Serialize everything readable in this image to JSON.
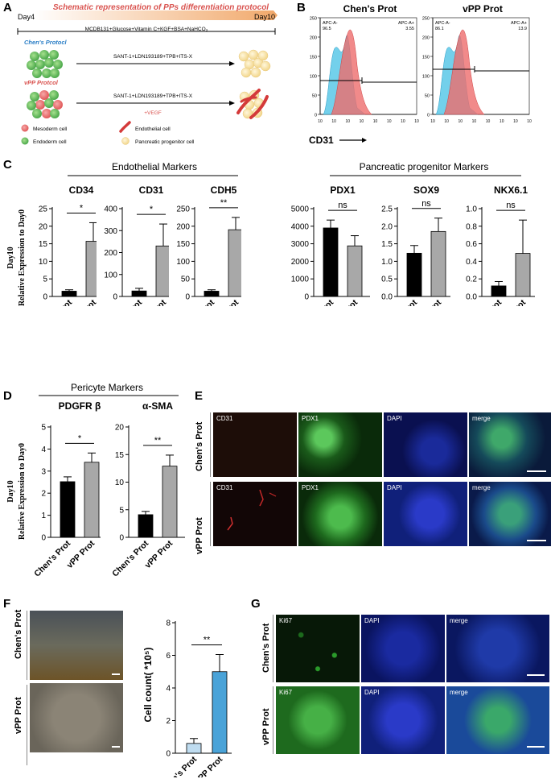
{
  "panel_letters": [
    "A",
    "B",
    "C",
    "D",
    "E",
    "F",
    "G"
  ],
  "panelA": {
    "title": "Schematic representation of  PPs differentiation protocol",
    "day_start": "Day4",
    "day_end": "Day10",
    "base_medium": "MCDB131+Glucose+Vitamin C+KGF+BSA+NaHCO₃",
    "chen_label": "Chen's Protocl",
    "vpp_label": "vPP Protcol",
    "chen_cocktail": "SANT-1+LDN193189+TPB+ITS-X",
    "vpp_cocktail": "SANT-1+LDN193189+TPB+ITS-X",
    "vegf": "+VEGF",
    "legend": {
      "mesoderm": "Mesoderm cell",
      "endoderm": "Endoderm cell",
      "endothelial": "Endothelial cell",
      "pancreatic": "Pancreatic progenitor cell"
    }
  },
  "panelB": {
    "chen_title": "Chen's Prot",
    "vpp_title": "vPP Prot",
    "gate_left_label": "APC-A-",
    "gate_right_label": "APC-A+",
    "chen_left_pct": "96.5",
    "chen_right_pct": "3.55",
    "vpp_left_pct": "86.1",
    "vpp_right_pct": "13.9",
    "x_marker": "CD31",
    "colors": {
      "control": "#5bc8e8",
      "sample": "#ee6d6d"
    }
  },
  "panelC": {
    "group1_title": "Endothelial Markers",
    "group2_title": "Pancreatic progenitor Markers",
    "ylabel_line1": "Day10",
    "ylabel_line2": "Relative Expression to Day0"
  },
  "panelD": {
    "title": "Pericyte Markers",
    "ylabel_line1": "Day10",
    "ylabel_line2": "Relative Expression to Day0"
  },
  "panelE": {
    "row1": "Chen's Prot",
    "row2": "vPP  Prot",
    "channels": [
      "CD31",
      "PDX1",
      "DAPI",
      "merge"
    ]
  },
  "panelF": {
    "row1": "Chen's Prot",
    "row2": "vPP Prot",
    "ylabel": "Cell count( *10⁵)"
  },
  "panelG": {
    "row1": "Chen's Prot",
    "row2": "vPP Prot",
    "channels": [
      "Ki67",
      "DAPI",
      "merge"
    ]
  },
  "chart_data": [
    {
      "type": "bar",
      "title": "CD34",
      "categories": [
        "Chen's Prot",
        "vPP Prot"
      ],
      "values": [
        1.5,
        15.7
      ],
      "errors": [
        0.4,
        5.3
      ],
      "ylim": [
        0,
        25
      ],
      "yticks": [
        0,
        5,
        10,
        15,
        20,
        25
      ],
      "sig": "*",
      "colors": [
        "#000000",
        "#a8a8a8"
      ]
    },
    {
      "type": "bar",
      "title": "CD31",
      "categories": [
        "Chen's Prot",
        "vPP Prot"
      ],
      "values": [
        25,
        230
      ],
      "errors": [
        12,
        100
      ],
      "ylim": [
        0,
        400
      ],
      "yticks": [
        0,
        100,
        200,
        300,
        400
      ],
      "sig": "*",
      "colors": [
        "#000000",
        "#a8a8a8"
      ]
    },
    {
      "type": "bar",
      "title": "CDH5",
      "categories": [
        "Chen's Prot",
        "vPP Prot"
      ],
      "values": [
        15,
        190
      ],
      "errors": [
        4,
        35
      ],
      "ylim": [
        0,
        250
      ],
      "yticks": [
        0,
        50,
        100,
        150,
        200,
        250
      ],
      "sig": "**",
      "colors": [
        "#000000",
        "#a8a8a8"
      ]
    },
    {
      "type": "bar",
      "title": "PDX1",
      "categories": [
        "Chen's Prot",
        "vPP Prot"
      ],
      "values": [
        3900,
        2880
      ],
      "errors": [
        450,
        580
      ],
      "ylim": [
        0,
        5000
      ],
      "yticks": [
        0,
        1000,
        2000,
        3000,
        4000,
        5000
      ],
      "sig": "ns",
      "colors": [
        "#000000",
        "#a8a8a8"
      ]
    },
    {
      "type": "bar",
      "title": "SOX9",
      "categories": [
        "Chen's Prot",
        "vPP Prot"
      ],
      "values": [
        1.23,
        1.85
      ],
      "errors": [
        0.22,
        0.38
      ],
      "ylim": [
        0,
        2.5
      ],
      "yticks": [
        "0.0",
        "0.5",
        "1.0",
        "1.5",
        "2.0",
        "2.5"
      ],
      "sig": "ns",
      "colors": [
        "#000000",
        "#a8a8a8"
      ]
    },
    {
      "type": "bar",
      "title": "NKX6.1",
      "categories": [
        "Chen's Prot",
        "vPP Prot"
      ],
      "values": [
        0.12,
        0.49
      ],
      "errors": [
        0.05,
        0.38
      ],
      "ylim": [
        0,
        1.0
      ],
      "yticks": [
        "0.0",
        "0.2",
        "0.4",
        "0.6",
        "0.8",
        "1.0"
      ],
      "sig": "ns",
      "colors": [
        "#000000",
        "#a8a8a8"
      ]
    },
    {
      "type": "bar",
      "title": "PDGFR β",
      "categories": [
        "Chen's Prot",
        "vPP Prot"
      ],
      "values": [
        2.52,
        3.4
      ],
      "errors": [
        0.22,
        0.42
      ],
      "ylim": [
        0,
        5
      ],
      "yticks": [
        0,
        1,
        2,
        3,
        4,
        5
      ],
      "sig": "*",
      "colors": [
        "#000000",
        "#a8a8a8"
      ]
    },
    {
      "type": "bar",
      "title": "α-SMA",
      "categories": [
        "Chen's Prot",
        "vPP Prot"
      ],
      "values": [
        4.1,
        12.9
      ],
      "errors": [
        0.6,
        2.0
      ],
      "ylim": [
        0,
        20
      ],
      "yticks": [
        0,
        5,
        10,
        15,
        20
      ],
      "sig": "**",
      "colors": [
        "#000000",
        "#a8a8a8"
      ]
    },
    {
      "type": "bar",
      "title": "",
      "categories": [
        "Chen's Prot",
        "vPP Prot"
      ],
      "values": [
        0.6,
        5.0
      ],
      "errors": [
        0.3,
        1.05
      ],
      "ylim": [
        0,
        8
      ],
      "yticks": [
        0,
        2,
        4,
        6,
        8
      ],
      "sig": "**",
      "colors": [
        "#bfdcf0",
        "#4aa3d8"
      ]
    }
  ]
}
